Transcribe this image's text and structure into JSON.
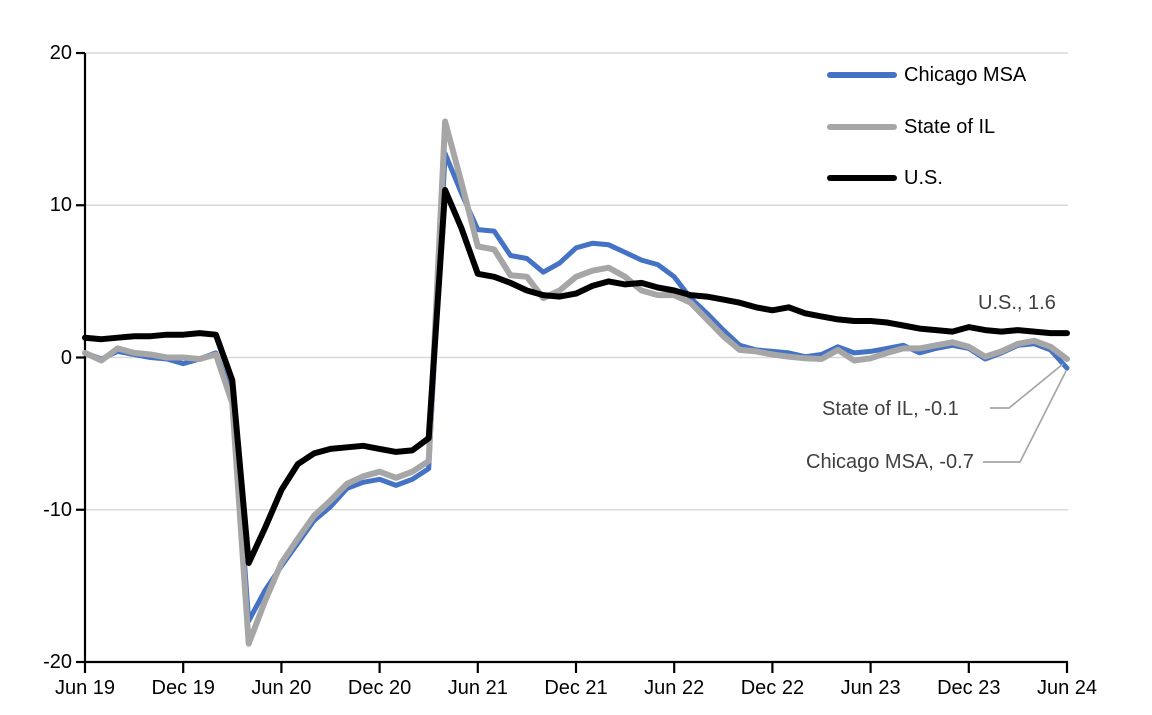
{
  "chart_data": {
    "type": "line",
    "title": "",
    "xlabel": "",
    "ylabel": "",
    "ylim": [
      -20,
      20
    ],
    "y_ticks": [
      20,
      10,
      0,
      -10,
      -20
    ],
    "gridline_values": [
      20,
      10,
      0,
      -10
    ],
    "grid": "horizontal",
    "legend_position": "top-right",
    "x_unit": "monthly, Jun 2019 through Jun 2024",
    "x_tick_labels": [
      "Jun 19",
      "Dec 19",
      "Jun 20",
      "Dec 20",
      "Jun 21",
      "Dec 21",
      "Jun 22",
      "Dec 22",
      "Jun 23",
      "Dec 23",
      "Jun 24"
    ],
    "series": [
      {
        "name": "Chicago MSA",
        "color": "#4472C4",
        "last_value": -0.7,
        "values": [
          0.3,
          -0.1,
          0.4,
          0.2,
          0.0,
          -0.1,
          -0.4,
          -0.1,
          0.3,
          -2.5,
          -17.3,
          -15.3,
          -13.7,
          -12.2,
          -10.7,
          -9.8,
          -8.6,
          -8.2,
          -8.0,
          -8.4,
          -8.0,
          -7.3,
          13.4,
          10.8,
          8.4,
          8.3,
          6.7,
          6.5,
          5.6,
          6.2,
          7.2,
          7.5,
          7.4,
          6.9,
          6.4,
          6.1,
          5.3,
          3.9,
          2.9,
          1.8,
          0.8,
          0.5,
          0.4,
          0.3,
          0.05,
          0.2,
          0.7,
          0.3,
          0.4,
          0.6,
          0.8,
          0.3,
          0.6,
          0.8,
          0.6,
          -0.1,
          0.3,
          0.8,
          0.9,
          0.5,
          -0.7
        ]
      },
      {
        "name": "State of IL",
        "color": "#A6A6A6",
        "last_value": -0.1,
        "values": [
          0.3,
          -0.2,
          0.6,
          0.3,
          0.2,
          0.0,
          0.0,
          -0.1,
          0.2,
          -3.0,
          -18.8,
          -16.0,
          -13.5,
          -11.9,
          -10.4,
          -9.4,
          -8.3,
          -7.8,
          -7.5,
          -7.9,
          -7.5,
          -6.8,
          15.5,
          11.5,
          7.3,
          7.1,
          5.4,
          5.3,
          3.9,
          4.4,
          5.3,
          5.7,
          5.9,
          5.3,
          4.4,
          4.1,
          4.1,
          3.6,
          2.5,
          1.4,
          0.5,
          0.4,
          0.2,
          0.05,
          -0.05,
          -0.1,
          0.5,
          -0.2,
          -0.05,
          0.3,
          0.6,
          0.6,
          0.8,
          1.0,
          0.7,
          0.05,
          0.4,
          0.9,
          1.1,
          0.7,
          -0.1
        ]
      },
      {
        "name": "U.S.",
        "color": "#000000",
        "last_value": 1.6,
        "values": [
          1.3,
          1.2,
          1.3,
          1.4,
          1.4,
          1.5,
          1.5,
          1.6,
          1.5,
          -1.5,
          -13.5,
          -11.2,
          -8.7,
          -7.0,
          -6.3,
          -6.0,
          -5.9,
          -5.8,
          -6.0,
          -6.2,
          -6.1,
          -5.3,
          11.0,
          8.5,
          5.5,
          5.3,
          4.9,
          4.4,
          4.1,
          4.0,
          4.2,
          4.7,
          5.0,
          4.8,
          4.9,
          4.6,
          4.4,
          4.1,
          4.0,
          3.8,
          3.6,
          3.3,
          3.1,
          3.3,
          2.9,
          2.7,
          2.5,
          2.4,
          2.4,
          2.3,
          2.1,
          1.9,
          1.8,
          1.7,
          2.0,
          1.8,
          1.7,
          1.8,
          1.7,
          1.6,
          1.6
        ]
      }
    ],
    "annotations": {
      "us": "U.S., 1.6",
      "state_il": "State of IL, -0.1",
      "chicago_msa": "Chicago MSA, -0.7"
    }
  },
  "legend": {
    "items": [
      {
        "label": "Chicago MSA"
      },
      {
        "label": "State of IL"
      },
      {
        "label": "U.S."
      }
    ]
  },
  "palette": {
    "chicago_msa": "#4472C4",
    "state_of_il": "#A6A6A6",
    "us": "#000000",
    "gridline": "#D9D9D9",
    "axis": "#000000",
    "annotation_text": "#404040",
    "leader_line": "#A6A6A6",
    "background": "#FFFFFF"
  }
}
